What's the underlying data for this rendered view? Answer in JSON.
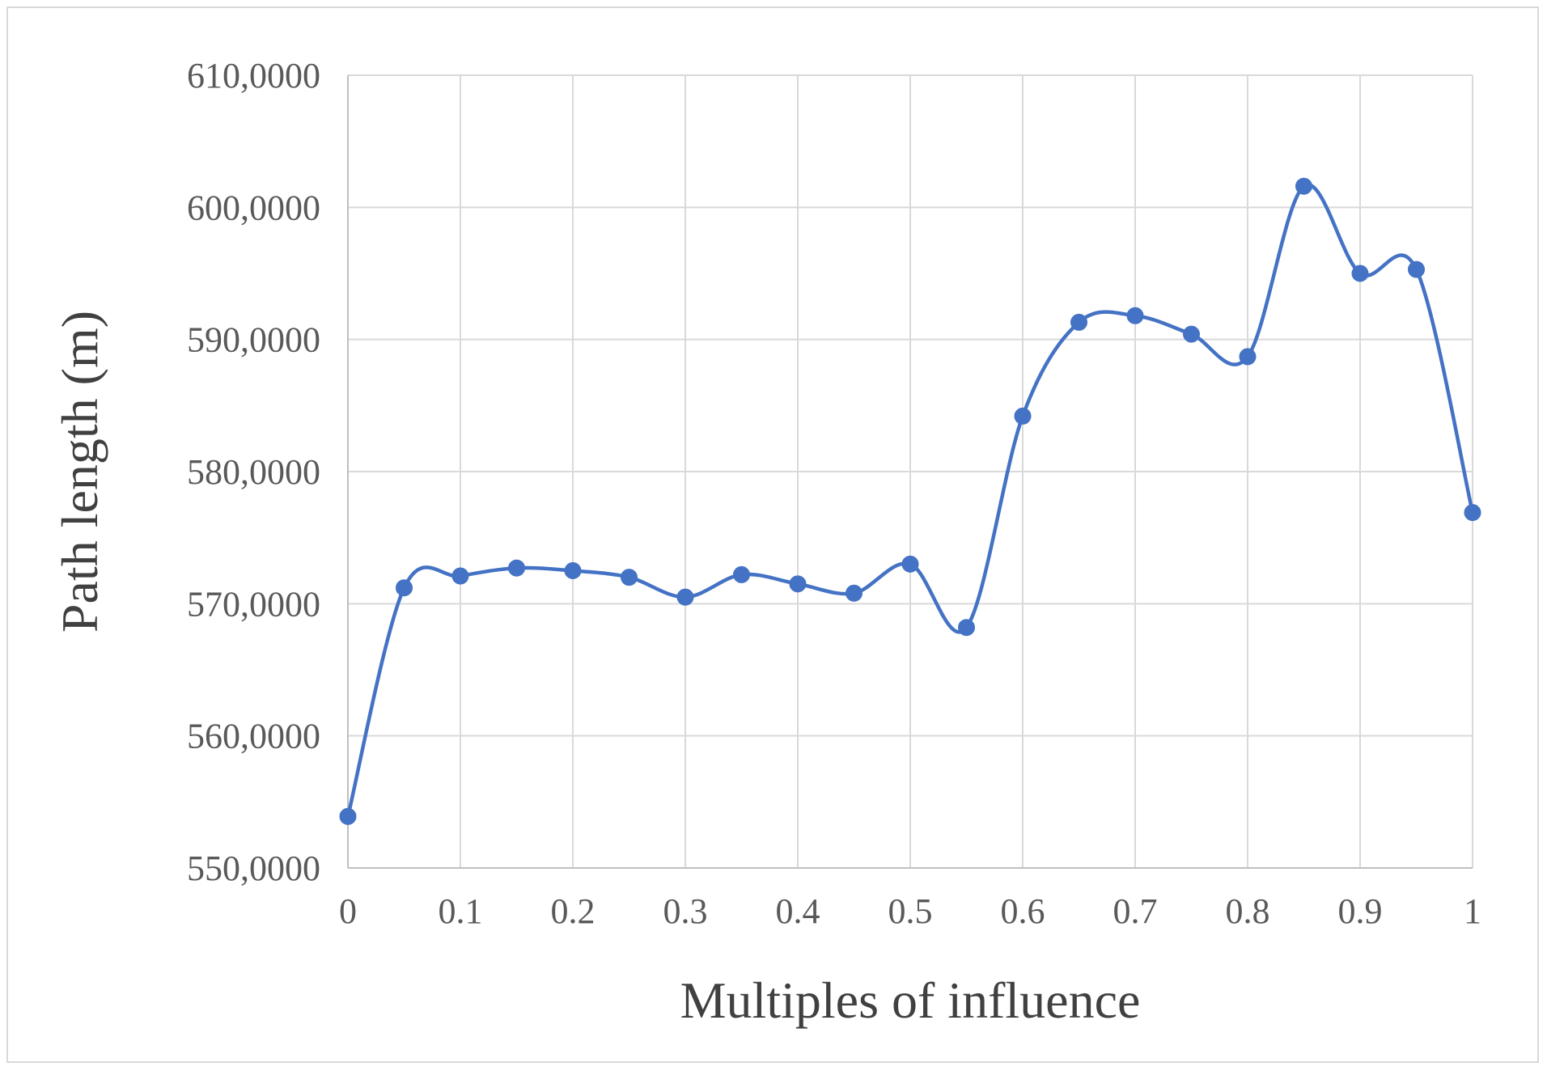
{
  "chart_data": {
    "type": "line",
    "smooth": true,
    "markers": true,
    "xlabel": "Multiples of influence",
    "ylabel": "Path length (m)",
    "xlim": [
      0,
      1
    ],
    "ylim": [
      550,
      610
    ],
    "x_ticks": [
      0,
      0.1,
      0.2,
      0.3,
      0.4,
      0.5,
      0.6,
      0.7,
      0.8,
      0.9,
      1
    ],
    "x_tick_labels": [
      "0",
      "0.1",
      "0.2",
      "0.3",
      "0.4",
      "0.5",
      "0.6",
      "0.7",
      "0.8",
      "0.9",
      "1"
    ],
    "y_ticks": [
      550,
      560,
      570,
      580,
      590,
      600,
      610
    ],
    "y_tick_labels": [
      "550,0000",
      "560,0000",
      "570,0000",
      "580,0000",
      "590,0000",
      "600,0000",
      "610,0000"
    ],
    "grid": "both",
    "legend": "none",
    "series": [
      {
        "color": "#4472c4",
        "x": [
          0,
          0.05,
          0.1,
          0.15,
          0.2,
          0.25,
          0.3,
          0.35,
          0.4,
          0.45,
          0.5,
          0.55,
          0.6,
          0.65,
          0.7,
          0.75,
          0.8,
          0.85,
          0.9,
          0.95,
          1
        ],
        "y": [
          553.9,
          571.2,
          572.1,
          572.7,
          572.5,
          572.0,
          570.5,
          572.2,
          571.5,
          570.8,
          573.0,
          568.2,
          584.2,
          591.3,
          591.8,
          590.4,
          588.7,
          601.6,
          595.0,
          595.3,
          576.9
        ]
      }
    ]
  }
}
